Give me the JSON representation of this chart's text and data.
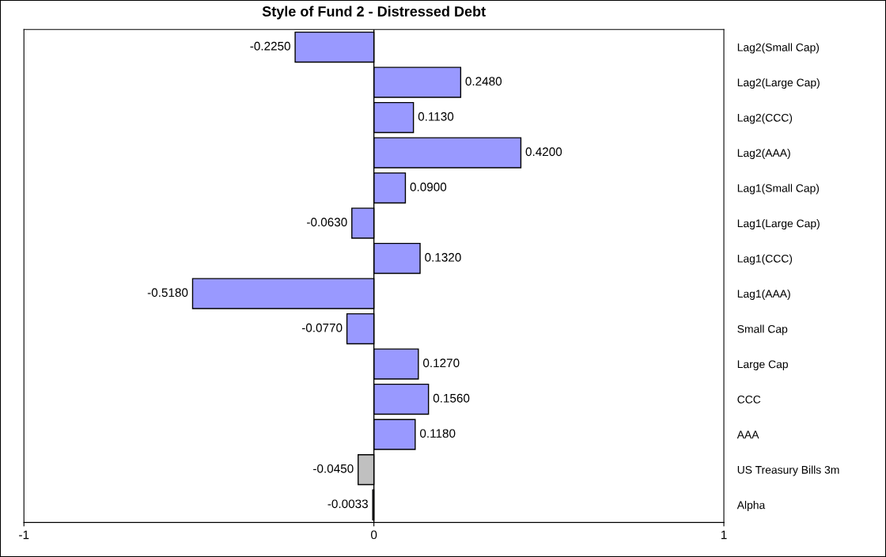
{
  "chart_data": {
    "type": "bar",
    "orientation": "horizontal",
    "title": "Style of Fund 2 - Distressed Debt",
    "categories": [
      "Lag2(Small Cap)",
      "Lag2(Large Cap)",
      "Lag2(CCC)",
      "Lag2(AAA)",
      "Lag1(Small Cap)",
      "Lag1(Large Cap)",
      "Lag1(CCC)",
      "Lag1(AAA)",
      "Small Cap",
      "Large Cap",
      "CCC",
      "AAA",
      "US Treasury Bills 3m",
      "Alpha"
    ],
    "values": [
      -0.225,
      0.248,
      0.113,
      0.42,
      0.09,
      -0.063,
      0.132,
      -0.518,
      -0.077,
      0.127,
      0.156,
      0.118,
      -0.045,
      -0.0033
    ],
    "value_labels": [
      "-0.2250",
      "0.2480",
      "0.1130",
      "0.4200",
      "0.0900",
      "-0.0630",
      "0.1320",
      "-0.5180",
      "-0.0770",
      "0.1270",
      "0.1560",
      "0.1180",
      "-0.0450",
      "-0.0033"
    ],
    "colors": [
      "#9999ff",
      "#9999ff",
      "#9999ff",
      "#9999ff",
      "#9999ff",
      "#9999ff",
      "#9999ff",
      "#9999ff",
      "#9999ff",
      "#9999ff",
      "#9999ff",
      "#9999ff",
      "#c0c0c0",
      "#9999ff"
    ],
    "ref_lines": [
      {
        "axis": "x",
        "value": 0,
        "color": "#000000"
      }
    ],
    "xlim": [
      -1,
      1
    ],
    "xticks": [
      -1,
      0,
      1
    ],
    "grid": false,
    "legend": false
  }
}
